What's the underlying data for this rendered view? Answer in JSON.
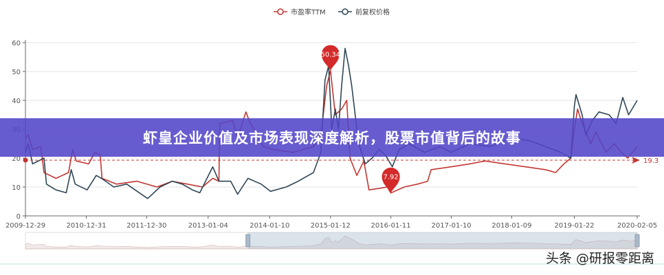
{
  "chart_data": {
    "type": "line",
    "legend": {
      "placement": "top-center",
      "entries": [
        "市盈率TTM",
        "前复权价格"
      ]
    },
    "yticks": [
      0,
      10,
      20,
      30,
      40,
      50,
      60
    ],
    "ylim": [
      0,
      60
    ],
    "xlim": [
      "2009-12-29",
      "2020-02-05"
    ],
    "xticks": [
      "2009-12-29",
      "2010-12-31",
      "2011-12-30",
      "2013-01-04",
      "2014-01-10",
      "2015-01-12",
      "2016-01-11",
      "2017-01-10",
      "2018-01-09",
      "2019-01-22",
      "2020-02-05"
    ],
    "grid": true,
    "colors": {
      "pe": "#c23531",
      "price": "#2f4554"
    },
    "series": [
      {
        "name": "市盈率TTM",
        "color": "#c23531",
        "points": [
          [
            "2009-12-29",
            27
          ],
          [
            "2010-01-15",
            28
          ],
          [
            "2010-02-10",
            23
          ],
          [
            "2010-04-01",
            24
          ],
          [
            "2010-04-20",
            15
          ],
          [
            "2010-07-01",
            13
          ],
          [
            "2010-09-15",
            15
          ],
          [
            "2010-10-10",
            23
          ],
          [
            "2010-11-01",
            19
          ],
          [
            "2011-01-15",
            18
          ],
          [
            "2011-02-20",
            22
          ],
          [
            "2011-03-25",
            21
          ],
          [
            "2011-04-05",
            13
          ],
          [
            "2011-07-01",
            11
          ],
          [
            "2011-11-01",
            12
          ],
          [
            "2012-03-01",
            10
          ],
          [
            "2012-06-01",
            12
          ],
          [
            "2012-09-01",
            11
          ],
          [
            "2012-12-01",
            10
          ],
          [
            "2013-02-01",
            13
          ],
          [
            "2013-03-10",
            12
          ],
          [
            "2013-03-15",
            32
          ],
          [
            "2013-06-01",
            33
          ],
          [
            "2013-07-01",
            27
          ],
          [
            "2013-08-20",
            36
          ],
          [
            "2013-09-15",
            32
          ],
          [
            "2013-11-01",
            28
          ],
          [
            "2013-12-01",
            24
          ],
          [
            "2014-02-01",
            23
          ],
          [
            "2014-06-01",
            22
          ],
          [
            "2014-10-01",
            24
          ],
          [
            "2014-11-15",
            28
          ],
          [
            "2014-12-20",
            45
          ],
          [
            "2015-01-12",
            50.34
          ],
          [
            "2015-02-10",
            35
          ],
          [
            "2015-03-20",
            37
          ],
          [
            "2015-04-20",
            40
          ],
          [
            "2015-05-10",
            20
          ],
          [
            "2015-06-20",
            14
          ],
          [
            "2015-08-01",
            19
          ],
          [
            "2015-09-01",
            9
          ],
          [
            "2015-11-01",
            9.5
          ],
          [
            "2015-12-20",
            10
          ],
          [
            "2016-01-11",
            7.92
          ],
          [
            "2016-04-01",
            10
          ],
          [
            "2016-06-20",
            11
          ],
          [
            "2016-08-20",
            12
          ],
          [
            "2016-09-10",
            16
          ],
          [
            "2017-01-10",
            17
          ],
          [
            "2017-05-01",
            18
          ],
          [
            "2017-08-01",
            19
          ],
          [
            "2017-12-01",
            18
          ],
          [
            "2018-04-01",
            17
          ],
          [
            "2018-08-01",
            16
          ],
          [
            "2018-10-01",
            15
          ],
          [
            "2018-11-20",
            18
          ],
          [
            "2019-01-01",
            20
          ],
          [
            "2019-01-22",
            30
          ],
          [
            "2019-02-10",
            37
          ],
          [
            "2019-03-10",
            32
          ],
          [
            "2019-05-01",
            25
          ],
          [
            "2019-06-01",
            29
          ],
          [
            "2019-08-01",
            22
          ],
          [
            "2019-09-20",
            25
          ],
          [
            "2019-11-01",
            22
          ],
          [
            "2019-12-10",
            20
          ],
          [
            "2020-02-05",
            24
          ]
        ]
      },
      {
        "name": "前复权价格",
        "color": "#2f4554",
        "points": [
          [
            "2009-12-29",
            22
          ],
          [
            "2010-01-15",
            25
          ],
          [
            "2010-02-10",
            18
          ],
          [
            "2010-04-20",
            20
          ],
          [
            "2010-05-05",
            11
          ],
          [
            "2010-07-01",
            9
          ],
          [
            "2010-09-01",
            8
          ],
          [
            "2010-10-01",
            16
          ],
          [
            "2010-10-25",
            11
          ],
          [
            "2011-01-05",
            9
          ],
          [
            "2011-03-01",
            14
          ],
          [
            "2011-04-01",
            13
          ],
          [
            "2011-06-15",
            10
          ],
          [
            "2011-09-01",
            11
          ],
          [
            "2012-01-05",
            6
          ],
          [
            "2012-03-20",
            10
          ],
          [
            "2012-06-01",
            12
          ],
          [
            "2012-08-01",
            11
          ],
          [
            "2012-10-01",
            9
          ],
          [
            "2012-11-15",
            8
          ],
          [
            "2013-02-01",
            17
          ],
          [
            "2013-03-10",
            12
          ],
          [
            "2013-05-20",
            12
          ],
          [
            "2013-07-01",
            7.5
          ],
          [
            "2013-09-01",
            13
          ],
          [
            "2013-11-20",
            11
          ],
          [
            "2014-01-15",
            8.5
          ],
          [
            "2014-04-20",
            10
          ],
          [
            "2014-07-01",
            12
          ],
          [
            "2014-10-01",
            15
          ],
          [
            "2014-11-15",
            22
          ],
          [
            "2014-12-10",
            47
          ],
          [
            "2015-01-01",
            52
          ],
          [
            "2015-01-20",
            30
          ],
          [
            "2015-02-10",
            37
          ],
          [
            "2015-03-01",
            30
          ],
          [
            "2015-03-20",
            45
          ],
          [
            "2015-04-10",
            58
          ],
          [
            "2015-05-01",
            52
          ],
          [
            "2015-05-20",
            45
          ],
          [
            "2015-06-10",
            35
          ],
          [
            "2015-07-01",
            25
          ],
          [
            "2015-08-10",
            18
          ],
          [
            "2015-09-20",
            20
          ],
          [
            "2015-11-01",
            23
          ],
          [
            "2015-12-10",
            21
          ],
          [
            "2016-01-20",
            17
          ],
          [
            "2016-03-01",
            23
          ],
          [
            "2016-05-01",
            25
          ],
          [
            "2016-08-01",
            22
          ],
          [
            "2016-11-01",
            24
          ],
          [
            "2017-01-10",
            22
          ],
          [
            "2017-05-01",
            25
          ],
          [
            "2017-09-01",
            24
          ],
          [
            "2018-01-09",
            27
          ],
          [
            "2018-05-01",
            26
          ],
          [
            "2018-08-01",
            24
          ],
          [
            "2018-11-01",
            22
          ],
          [
            "2019-01-01",
            20
          ],
          [
            "2019-01-22",
            38
          ],
          [
            "2019-02-01",
            42
          ],
          [
            "2019-03-10",
            35
          ],
          [
            "2019-04-01",
            28
          ],
          [
            "2019-05-10",
            33
          ],
          [
            "2019-06-20",
            36
          ],
          [
            "2019-08-20",
            35
          ],
          [
            "2019-10-01",
            32
          ],
          [
            "2019-11-10",
            41
          ],
          [
            "2019-12-15",
            35
          ],
          [
            "2020-02-05",
            40
          ]
        ]
      }
    ],
    "annotations": {
      "max": {
        "label": "50.34",
        "date": "2015-01-12",
        "value": 50.34
      },
      "min": {
        "label": "7.92",
        "date": "2016-01-11",
        "value": 7.92
      },
      "average": {
        "label": "19.3",
        "value": 19.3
      }
    },
    "datazoom": {
      "start_date": "2013-09-01",
      "end_date": "2020-02-05"
    }
  },
  "banner": {
    "title": "虾皇企业价值及市场表现深度解析，股票市值背后的故事"
  },
  "watermark": "头条 @研报零距离"
}
